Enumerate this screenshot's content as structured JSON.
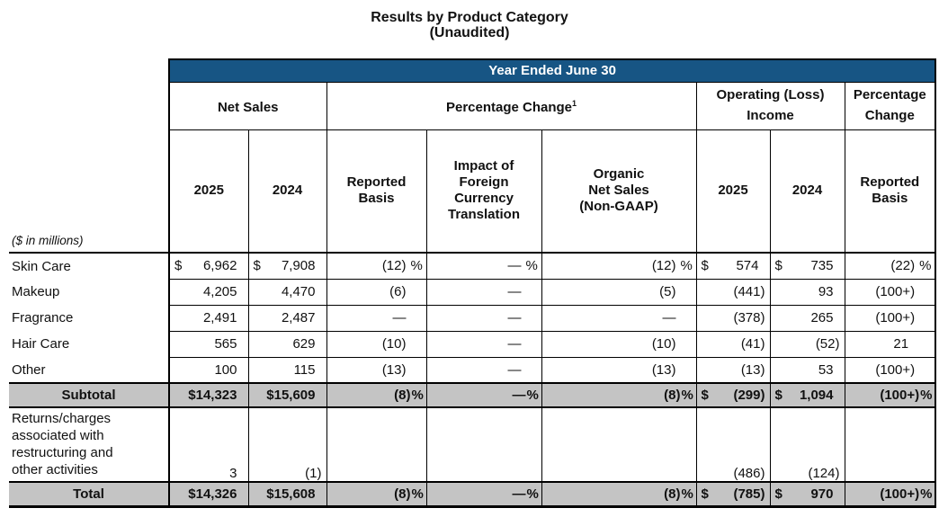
{
  "title": {
    "line1": "Results by Product Category",
    "line2": "(Unaudited)"
  },
  "colors": {
    "banner_blue": "#175584",
    "band_gray": "#c4c4c4",
    "border_black": "#000000"
  },
  "table": {
    "banner": "Year Ended June 30",
    "groups": [
      {
        "label": "Net Sales"
      },
      {
        "label": "Percentage Change",
        "footnote": "1"
      },
      {
        "label": "Operating (Loss)\nIncome"
      },
      {
        "label": "Percentage\nChange"
      }
    ],
    "subheaders": [
      "2025",
      "2024",
      "Reported\nBasis",
      "Impact of\nForeign\nCurrency\nTranslation",
      "Organic\nNet Sales\n(Non-GAAP)",
      "2025",
      "2024",
      "Reported\nBasis"
    ],
    "units_note": "($ in millions)",
    "rows": [
      {
        "label": "Skin Care",
        "type": "data",
        "cells": [
          {
            "c": "$",
            "v": "6,962"
          },
          {
            "c": "$",
            "v": "7,908"
          },
          {
            "v": "(12)",
            "u": "%"
          },
          {
            "v": "—",
            "u": "%"
          },
          {
            "v": "(12)",
            "u": "%"
          },
          {
            "c": "$",
            "v": "574"
          },
          {
            "c": "$",
            "v": "735"
          },
          {
            "v": "(22)",
            "u": "%"
          }
        ]
      },
      {
        "label": "Makeup",
        "type": "data",
        "cells": [
          {
            "v": "4,205"
          },
          {
            "v": "4,470"
          },
          {
            "v": "(6)"
          },
          {
            "v": "—"
          },
          {
            "v": "(5)"
          },
          {
            "v": "(441)"
          },
          {
            "v": "93"
          },
          {
            "v": "(100+)"
          }
        ]
      },
      {
        "label": "Fragrance",
        "type": "data",
        "cells": [
          {
            "v": "2,491"
          },
          {
            "v": "2,487"
          },
          {
            "v": "—"
          },
          {
            "v": "—"
          },
          {
            "v": "—"
          },
          {
            "v": "(378)"
          },
          {
            "v": "265"
          },
          {
            "v": "(100+)"
          }
        ]
      },
      {
        "label": "Hair Care",
        "type": "data",
        "cells": [
          {
            "v": "565"
          },
          {
            "v": "629"
          },
          {
            "v": "(10)"
          },
          {
            "v": "—"
          },
          {
            "v": "(10)"
          },
          {
            "v": "(41)"
          },
          {
            "v": "(52)"
          },
          {
            "v": "21"
          }
        ]
      },
      {
        "label": "Other",
        "type": "data",
        "cells": [
          {
            "v": "100"
          },
          {
            "v": "115"
          },
          {
            "v": "(13)"
          },
          {
            "v": "—"
          },
          {
            "v": "(13)"
          },
          {
            "v": "(13)"
          },
          {
            "v": "53"
          },
          {
            "v": "(100+)"
          }
        ]
      },
      {
        "label": "Subtotal",
        "type": "subtotal",
        "cells": [
          {
            "v": "$14,323"
          },
          {
            "v": "$15,609"
          },
          {
            "v": "(8)",
            "u": "%"
          },
          {
            "v": "—",
            "u": "%"
          },
          {
            "v": "(8)",
            "u": "%"
          },
          {
            "c": "$",
            "v": "(299)"
          },
          {
            "c": "$",
            "v": "1,094"
          },
          {
            "v": "(100+)",
            "u": "%"
          }
        ]
      },
      {
        "label": "Returns/charges\nassociated with\nrestructuring and\nother activities",
        "type": "tall",
        "cells": [
          {
            "v": "3"
          },
          {
            "v": "(1)"
          },
          {
            "v": ""
          },
          {
            "v": ""
          },
          {
            "v": ""
          },
          {
            "v": "(486)"
          },
          {
            "v": "(124)"
          },
          {
            "v": ""
          }
        ]
      },
      {
        "label": "Total",
        "type": "total",
        "cells": [
          {
            "v": "$14,326"
          },
          {
            "v": "$15,608"
          },
          {
            "v": "(8)",
            "u": "%"
          },
          {
            "v": "—",
            "u": "%"
          },
          {
            "v": "(8)",
            "u": "%"
          },
          {
            "c": "$",
            "v": "(785)"
          },
          {
            "c": "$",
            "v": "970"
          },
          {
            "v": "(100+)",
            "u": "%"
          }
        ]
      }
    ]
  }
}
